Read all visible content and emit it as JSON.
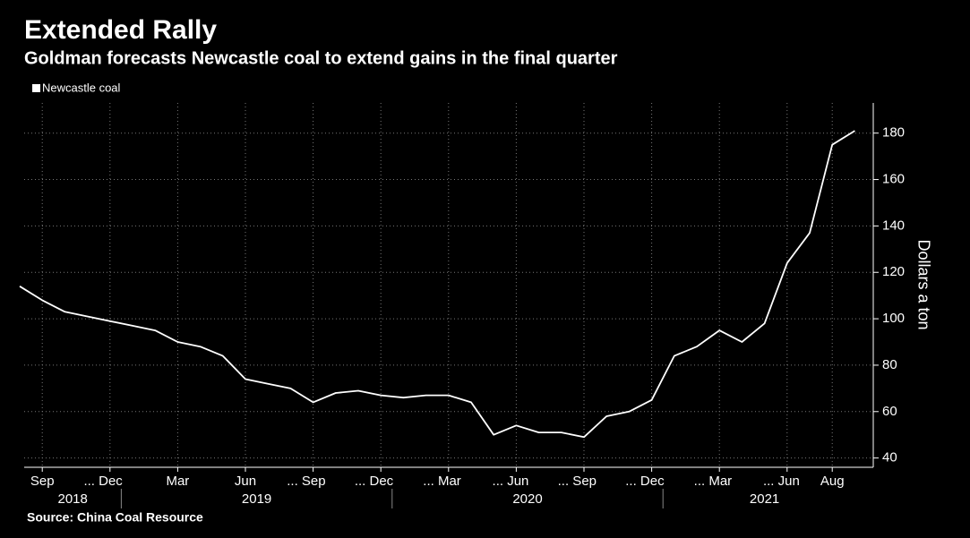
{
  "chart_data": {
    "type": "line",
    "title": "Extended Rally",
    "subtitle": "Goldman forecasts Newcastle coal to extend gains in the final quarter",
    "source": "Source: China Coal Resource",
    "y_axis_label": "Dollars a ton",
    "legend": "top-left",
    "grid": true,
    "x": [
      "2018-08",
      "2018-09",
      "2018-10",
      "2018-11",
      "2018-12",
      "2019-01",
      "2019-02",
      "2019-03",
      "2019-04",
      "2019-05",
      "2019-06",
      "2019-07",
      "2019-08",
      "2019-09",
      "2019-10",
      "2019-11",
      "2019-12",
      "2020-01",
      "2020-02",
      "2020-03",
      "2020-04",
      "2020-05",
      "2020-06",
      "2020-07",
      "2020-08",
      "2020-09",
      "2020-10",
      "2020-11",
      "2020-12",
      "2021-01",
      "2021-02",
      "2021-03",
      "2021-04",
      "2021-05",
      "2021-06",
      "2021-07",
      "2021-08",
      "2021-09"
    ],
    "series": [
      {
        "name": "Newcastle coal",
        "color": "#ffffff",
        "values": [
          114,
          108,
          103,
          101,
          99,
          97,
          95,
          90,
          88,
          84,
          74,
          72,
          70,
          64,
          68,
          69,
          67,
          66,
          67,
          67,
          64,
          50,
          54,
          51,
          51,
          49,
          58,
          60,
          65,
          84,
          88,
          95,
          90,
          98,
          124,
          137,
          175,
          181
        ]
      }
    ],
    "xticks": [
      {
        "value": "2018-09",
        "label": "Sep"
      },
      {
        "value": "2018-12",
        "label": "... Dec"
      },
      {
        "value": "2019-03",
        "label": "Mar"
      },
      {
        "value": "2019-06",
        "label": "Jun"
      },
      {
        "value": "2019-09",
        "label": "... Sep"
      },
      {
        "value": "2019-12",
        "label": "... Dec"
      },
      {
        "value": "2020-03",
        "label": "... Mar"
      },
      {
        "value": "2020-06",
        "label": "... Jun"
      },
      {
        "value": "2020-09",
        "label": "... Sep"
      },
      {
        "value": "2020-12",
        "label": "... Dec"
      },
      {
        "value": "2021-03",
        "label": "... Mar"
      },
      {
        "value": "2021-06",
        "label": "... Jun"
      },
      {
        "value": "2021-08",
        "label": "Aug"
      }
    ],
    "years": [
      "2018",
      "2019",
      "2020",
      "2021"
    ],
    "ylim": [
      36,
      193
    ],
    "yticks": [
      40,
      60,
      80,
      100,
      120,
      140,
      160,
      180
    ]
  }
}
